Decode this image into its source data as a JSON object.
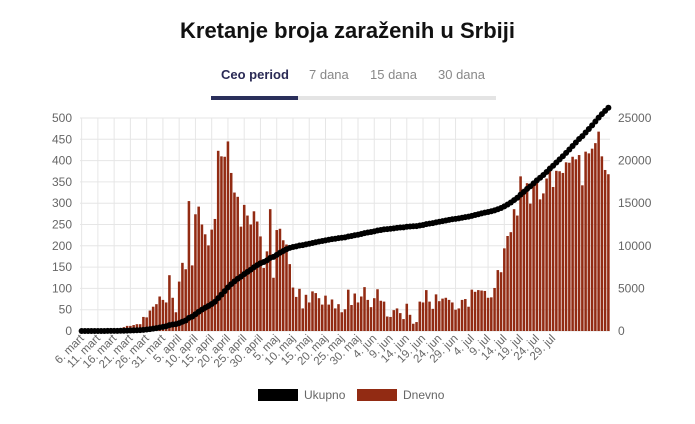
{
  "title": "Kretanje broja zaraženih u Srbiji",
  "tabs": [
    {
      "label": "Ceo period",
      "active": true
    },
    {
      "label": "7 dana",
      "active": false
    },
    {
      "label": "15 dana",
      "active": false
    },
    {
      "label": "30 dana",
      "active": false
    }
  ],
  "colors": {
    "bars": "#922b13",
    "line": "#000000",
    "grid": "#e6e6e6",
    "tab_active": "#2a2f5b"
  },
  "chart_data": {
    "type": "bar+line",
    "x_tick_labels": [
      "6. mart",
      "11. mart",
      "16. mart",
      "21. mart",
      "26. mart",
      "31. mart",
      "5. april",
      "10. april",
      "15. april",
      "20. april",
      "25. april",
      "30. april",
      "5. maj",
      "10. maj",
      "15. maj",
      "20. maj",
      "25. maj",
      "30. maj",
      "4. jun",
      "9. jun",
      "14. jun",
      "19. jun",
      "24. jun",
      "29. jun",
      "4. jul",
      "9. jul",
      "14. jul",
      "19. jul",
      "24. jul",
      "29. jul"
    ],
    "left_axis": {
      "min": 0,
      "max": 500,
      "ticks": [
        0,
        50,
        100,
        150,
        200,
        250,
        300,
        350,
        400,
        450,
        500
      ]
    },
    "right_axis": {
      "min": 0,
      "max": 25000,
      "ticks": [
        0,
        5000,
        10000,
        15000,
        20000,
        25000
      ]
    },
    "series": [
      {
        "name": "Dnevno",
        "axis": "left",
        "type": "bar",
        "values": [
          1,
          0,
          0,
          0,
          0,
          0,
          1,
          2,
          5,
          6,
          3,
          2,
          5,
          9,
          12,
          12,
          14,
          16,
          16,
          33,
          32,
          48,
          57,
          63,
          81,
          73,
          67,
          131,
          78,
          44,
          116,
          160,
          145,
          305,
          154,
          274,
          292,
          250,
          227,
          201,
          238,
          263,
          423,
          410,
          409,
          445,
          371,
          325,
          315,
          245,
          296,
          271,
          250,
          281,
          257,
          222,
          148,
          187,
          286,
          125,
          237,
          240,
          213,
          203,
          157,
          102,
          80,
          99,
          53,
          85,
          67,
          93,
          89,
          77,
          62,
          83,
          62,
          74,
          53,
          63,
          44,
          51,
          97,
          61,
          88,
          67,
          81,
          103,
          73,
          56,
          77,
          98,
          71,
          69,
          34,
          33,
          49,
          53,
          42,
          28,
          64,
          38,
          17,
          21,
          69,
          67,
          96,
          69,
          52,
          86,
          70,
          76,
          78,
          73,
          67,
          50,
          53,
          73,
          75,
          57,
          97,
          92,
          96,
          95,
          94,
          78,
          79,
          101,
          143,
          138,
          194,
          223,
          232,
          286,
          271,
          363,
          334,
          347,
          299,
          349,
          348,
          309,
          323,
          358,
          388,
          338,
          376,
          375,
          371,
          396,
          395,
          409,
          403,
          413,
          342,
          421,
          417,
          428,
          441,
          468,
          410,
          378,
          368
        ]
      },
      {
        "name": "Ukupno",
        "axis": "right",
        "type": "line",
        "values": [
          1,
          1,
          1,
          1,
          1,
          1,
          2,
          4,
          9,
          15,
          18,
          20,
          25,
          34,
          46,
          58,
          72,
          88,
          104,
          137,
          169,
          217,
          274,
          337,
          418,
          491,
          558,
          689,
          767,
          811,
          927,
          1087,
          1232,
          1537,
          1691,
          1965,
          2257,
          2507,
          2734,
          2935,
          3173,
          3436,
          3859,
          4269,
          4678,
          5123,
          5494,
          5819,
          6134,
          6379,
          6675,
          6946,
          7196,
          7477,
          7734,
          7956,
          8104,
          8291,
          8577,
          8702,
          8939,
          9179,
          9392,
          9595,
          9752,
          9854,
          9934,
          10033,
          10086,
          10171,
          10238,
          10331,
          10420,
          10497,
          10559,
          10642,
          10704,
          10778,
          10831,
          10894,
          10938,
          10989,
          11086,
          11147,
          11235,
          11302,
          11383,
          11486,
          11559,
          11615,
          11692,
          11790,
          11861,
          11930,
          11964,
          11997,
          12046,
          12099,
          12141,
          12169,
          12233,
          12271,
          12288,
          12309,
          12378,
          12445,
          12541,
          12610,
          12662,
          12748,
          12818,
          12894,
          12972,
          13045,
          13112,
          13162,
          13215,
          13288,
          13363,
          13420,
          13517,
          13609,
          13705,
          13800,
          13894,
          13972,
          14051,
          14152,
          14295,
          14433,
          14627,
          14850,
          15082,
          15368,
          15639,
          16002,
          16336,
          16683,
          16982,
          17331,
          17679,
          17988,
          18311,
          18669,
          19057,
          19395,
          19771,
          20146,
          20517,
          20913,
          21308,
          21717,
          22120,
          22533,
          22875,
          23296,
          23713,
          24141,
          24582,
          25050,
          25460,
          25838,
          26206
        ]
      }
    ],
    "legend": [
      {
        "name": "Ukupno",
        "color": "#000000"
      },
      {
        "name": "Dnevno",
        "color": "#922b13"
      }
    ],
    "legend_position": "bottom",
    "grid": true
  }
}
